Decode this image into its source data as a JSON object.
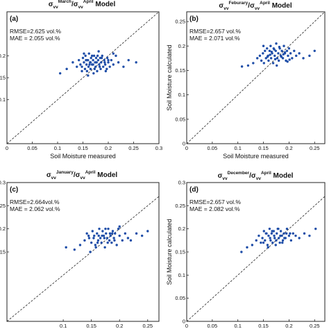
{
  "chart_data": [
    {
      "type": "scatter",
      "panel_label": "(a)",
      "title": {
        "base": "σ",
        "sub_num": "vv",
        "sup_num": "March",
        "slash": "/",
        "sub_den": "vv",
        "sup_den": "April",
        "suffix": "Model"
      },
      "rmse": "RMSE=2.625 vol.%",
      "mae": "MAE = 2.055 vol.%",
      "xlabel": "Soil Moisture measured",
      "ylabel": "",
      "xticks": [
        "0",
        "0.05",
        "0.1",
        "0.15",
        "0.2",
        "0.25",
        "0.3"
      ],
      "yticks": [
        "0.1",
        "0.15",
        "0.2"
      ],
      "xlim": [
        0,
        0.3
      ],
      "ylim": [
        0,
        0.3
      ],
      "reference_line": "1:1",
      "x": [
        0.105,
        0.118,
        0.13,
        0.138,
        0.142,
        0.145,
        0.148,
        0.15,
        0.152,
        0.154,
        0.155,
        0.157,
        0.158,
        0.16,
        0.161,
        0.162,
        0.164,
        0.165,
        0.166,
        0.168,
        0.17,
        0.171,
        0.172,
        0.174,
        0.175,
        0.176,
        0.178,
        0.18,
        0.181,
        0.182,
        0.184,
        0.185,
        0.186,
        0.188,
        0.19,
        0.192,
        0.194,
        0.195,
        0.198,
        0.2,
        0.203,
        0.206,
        0.21,
        0.215,
        0.22,
        0.23,
        0.24,
        0.255,
        0.148,
        0.152,
        0.158,
        0.163,
        0.168,
        0.173,
        0.177,
        0.183,
        0.187,
        0.193,
        0.197,
        0.16,
        0.156,
        0.17,
        0.179,
        0.165,
        0.2,
        0.21
      ],
      "y": [
        0.16,
        0.17,
        0.185,
        0.175,
        0.19,
        0.18,
        0.175,
        0.195,
        0.185,
        0.17,
        0.2,
        0.18,
        0.165,
        0.19,
        0.175,
        0.205,
        0.185,
        0.17,
        0.195,
        0.18,
        0.19,
        0.16,
        0.2,
        0.185,
        0.175,
        0.195,
        0.165,
        0.19,
        0.21,
        0.18,
        0.195,
        0.17,
        0.185,
        0.2,
        0.175,
        0.19,
        0.18,
        0.165,
        0.195,
        0.185,
        0.175,
        0.19,
        0.18,
        0.2,
        0.185,
        0.175,
        0.19,
        0.185,
        0.165,
        0.205,
        0.19,
        0.18,
        0.2,
        0.17,
        0.185,
        0.175,
        0.195,
        0.185,
        0.17,
        0.155,
        0.19,
        0.18,
        0.2,
        0.185,
        0.19,
        0.205
      ]
    },
    {
      "type": "scatter",
      "panel_label": "(b)",
      "title": {
        "base": "σ",
        "sub_num": "vv",
        "sup_num": "Feburary",
        "slash": "/",
        "sub_den": "vv",
        "sup_den": "April",
        "suffix": "Model"
      },
      "rmse": "RMSE=2.657 vol.%",
      "mae": "MAE = 2.071 vol.%",
      "xlabel": "Soil Moisture measured",
      "ylabel": "Soil Moisture calculated",
      "xticks": [
        "0",
        "0.05",
        "0.1",
        "0.15",
        "0.2",
        "0.25"
      ],
      "yticks": [
        "0",
        "0.05",
        "0.1",
        "0.15",
        "0.2",
        "0.25"
      ],
      "xlim": [
        0,
        0.27
      ],
      "ylim": [
        0,
        0.27
      ],
      "reference_line": "1:1",
      "x": [
        0.108,
        0.12,
        0.13,
        0.138,
        0.143,
        0.146,
        0.149,
        0.151,
        0.153,
        0.155,
        0.157,
        0.159,
        0.16,
        0.162,
        0.164,
        0.165,
        0.167,
        0.169,
        0.17,
        0.172,
        0.174,
        0.175,
        0.177,
        0.179,
        0.18,
        0.182,
        0.184,
        0.186,
        0.188,
        0.19,
        0.192,
        0.194,
        0.196,
        0.198,
        0.2,
        0.203,
        0.206,
        0.21,
        0.214,
        0.22,
        0.228,
        0.24,
        0.25,
        0.15,
        0.158,
        0.166,
        0.173,
        0.181,
        0.189,
        0.197,
        0.163,
        0.171,
        0.185,
        0.176,
        0.192,
        0.201
      ],
      "y": [
        0.158,
        0.16,
        0.165,
        0.175,
        0.18,
        0.17,
        0.185,
        0.165,
        0.19,
        0.175,
        0.195,
        0.18,
        0.17,
        0.19,
        0.2,
        0.175,
        0.185,
        0.165,
        0.195,
        0.18,
        0.19,
        0.205,
        0.175,
        0.185,
        0.17,
        0.195,
        0.18,
        0.19,
        0.175,
        0.2,
        0.185,
        0.17,
        0.19,
        0.18,
        0.195,
        0.185,
        0.175,
        0.19,
        0.18,
        0.185,
        0.175,
        0.18,
        0.19,
        0.2,
        0.178,
        0.188,
        0.173,
        0.198,
        0.183,
        0.168,
        0.182,
        0.193,
        0.178,
        0.16,
        0.187,
        0.172
      ]
    },
    {
      "type": "scatter",
      "panel_label": "(c)",
      "title": {
        "base": "σ",
        "sub_num": "vv",
        "sup_num": "January",
        "slash": "/",
        "sub_den": "vv",
        "sup_den": "April",
        "suffix": "Model"
      },
      "rmse": "RMSE=2.664vol.%",
      "mae": "MAE = 2.062 vol.%",
      "xlabel": "Soil Moisture measured",
      "ylabel": "",
      "xticks": [
        "0.1",
        "0.15",
        "0.2",
        "0.25"
      ],
      "yticks": [
        "0.3",
        "0.25",
        "0.2",
        "0.15"
      ],
      "xlim": [
        0,
        0.27
      ],
      "ylim": [
        0,
        0.3
      ],
      "reference_line": "1:1",
      "x": [
        0.105,
        0.12,
        0.13,
        0.138,
        0.142,
        0.146,
        0.15,
        0.152,
        0.155,
        0.157,
        0.16,
        0.162,
        0.164,
        0.166,
        0.168,
        0.17,
        0.172,
        0.174,
        0.176,
        0.178,
        0.18,
        0.182,
        0.184,
        0.186,
        0.188,
        0.19,
        0.192,
        0.195,
        0.198,
        0.2,
        0.205,
        0.21,
        0.215,
        0.22,
        0.23,
        0.24,
        0.25,
        0.148,
        0.154,
        0.161,
        0.169,
        0.175,
        0.183,
        0.191,
        0.158,
        0.173,
        0.187,
        0.163,
        0.179,
        0.2,
        0.145
      ],
      "y": [
        0.16,
        0.155,
        0.165,
        0.175,
        0.19,
        0.18,
        0.17,
        0.195,
        0.185,
        0.165,
        0.19,
        0.175,
        0.2,
        0.18,
        0.17,
        0.195,
        0.185,
        0.16,
        0.19,
        0.18,
        0.2,
        0.175,
        0.185,
        0.17,
        0.195,
        0.18,
        0.19,
        0.165,
        0.2,
        0.185,
        0.175,
        0.19,
        0.18,
        0.175,
        0.19,
        0.185,
        0.195,
        0.15,
        0.18,
        0.17,
        0.185,
        0.2,
        0.19,
        0.175,
        0.16,
        0.18,
        0.19,
        0.185,
        0.17,
        0.205,
        0.185
      ]
    },
    {
      "type": "scatter",
      "panel_label": "(d)",
      "title": {
        "base": "σ",
        "sub_num": "vv",
        "sup_num": "December",
        "slash": "/",
        "sub_den": "vv",
        "sup_den": "April",
        "suffix": "Model"
      },
      "rmse": "RMSE=2.657 vol.%",
      "mae": "MAE = 2.082 vol.%",
      "xlabel": "Soil Moisture measured",
      "ylabel": "Soil Moisture calculated",
      "xticks": [
        "0",
        "0.05",
        "0.1",
        "0.15",
        "0.2",
        "0.25"
      ],
      "yticks": [
        "0",
        "0.05",
        "0.1",
        "0.15",
        "0.2",
        "0.25",
        "0.3"
      ],
      "xlim": [
        0,
        0.27
      ],
      "ylim": [
        0,
        0.3
      ],
      "reference_line": "1:1",
      "x": [
        0.107,
        0.118,
        0.128,
        0.136,
        0.141,
        0.145,
        0.148,
        0.151,
        0.153,
        0.156,
        0.158,
        0.16,
        0.162,
        0.164,
        0.166,
        0.168,
        0.17,
        0.172,
        0.174,
        0.176,
        0.178,
        0.18,
        0.182,
        0.184,
        0.186,
        0.188,
        0.19,
        0.193,
        0.196,
        0.2,
        0.204,
        0.208,
        0.213,
        0.22,
        0.23,
        0.24,
        0.252,
        0.15,
        0.155,
        0.163,
        0.171,
        0.179,
        0.187,
        0.195,
        0.159,
        0.175,
        0.183,
        0.167,
        0.191,
        0.202
      ],
      "y": [
        0.15,
        0.16,
        0.165,
        0.175,
        0.185,
        0.17,
        0.18,
        0.195,
        0.175,
        0.19,
        0.165,
        0.185,
        0.2,
        0.175,
        0.19,
        0.17,
        0.195,
        0.18,
        0.165,
        0.19,
        0.2,
        0.18,
        0.17,
        0.195,
        0.185,
        0.175,
        0.19,
        0.18,
        0.2,
        0.185,
        0.175,
        0.19,
        0.185,
        0.18,
        0.19,
        0.185,
        0.2,
        0.17,
        0.19,
        0.18,
        0.185,
        0.2,
        0.17,
        0.19,
        0.16,
        0.175,
        0.185,
        0.195,
        0.18,
        0.19
      ]
    }
  ]
}
